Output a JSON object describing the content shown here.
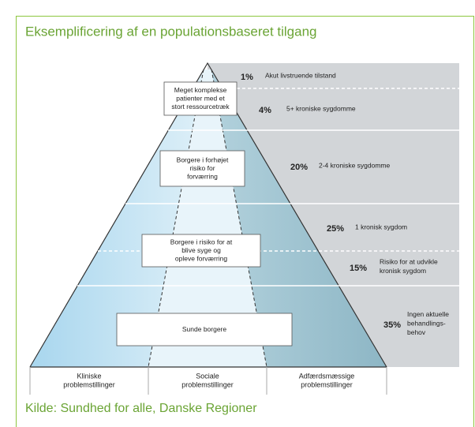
{
  "header": {
    "title": "Eksemplificering af en populationsbaseret tilgang"
  },
  "boxes": [
    {
      "lines": [
        "Meget komplekse",
        "patienter med et",
        "stort ressourcetræk"
      ]
    },
    {
      "lines": [
        "Borgere i forhøjet",
        "risiko for",
        "forværring"
      ]
    },
    {
      "lines": [
        "Borgere i risiko for at",
        "blive syge og",
        "opleve forværring"
      ]
    },
    {
      "lines": [
        "Sunde borgere"
      ]
    }
  ],
  "tiers": [
    {
      "percent": "1%",
      "lines": [
        "Akut livstruende tilstand"
      ]
    },
    {
      "percent": "4%",
      "lines": [
        "5+ kroniske sygdomme"
      ]
    },
    {
      "percent": "20%",
      "lines": [
        "2-4 kroniske sygdomme"
      ]
    },
    {
      "percent": "25%",
      "lines": [
        "1 kronisk sygdom"
      ]
    },
    {
      "percent": "15%",
      "lines": [
        "Risiko for at udvikle",
        "kronisk sygdom"
      ]
    },
    {
      "percent": "35%",
      "lines": [
        "Ingen aktuelle",
        "behandlings-",
        "behov"
      ]
    }
  ],
  "columns": [
    {
      "lines": [
        "Kliniske",
        "problemstillinger"
      ]
    },
    {
      "lines": [
        "Sociale",
        "problemstillinger"
      ]
    },
    {
      "lines": [
        "Adfærdsmæssige",
        "problemstillinger"
      ]
    }
  ],
  "footer": {
    "source": "Kilde: Sundhed for alle, Danske Regioner"
  }
}
